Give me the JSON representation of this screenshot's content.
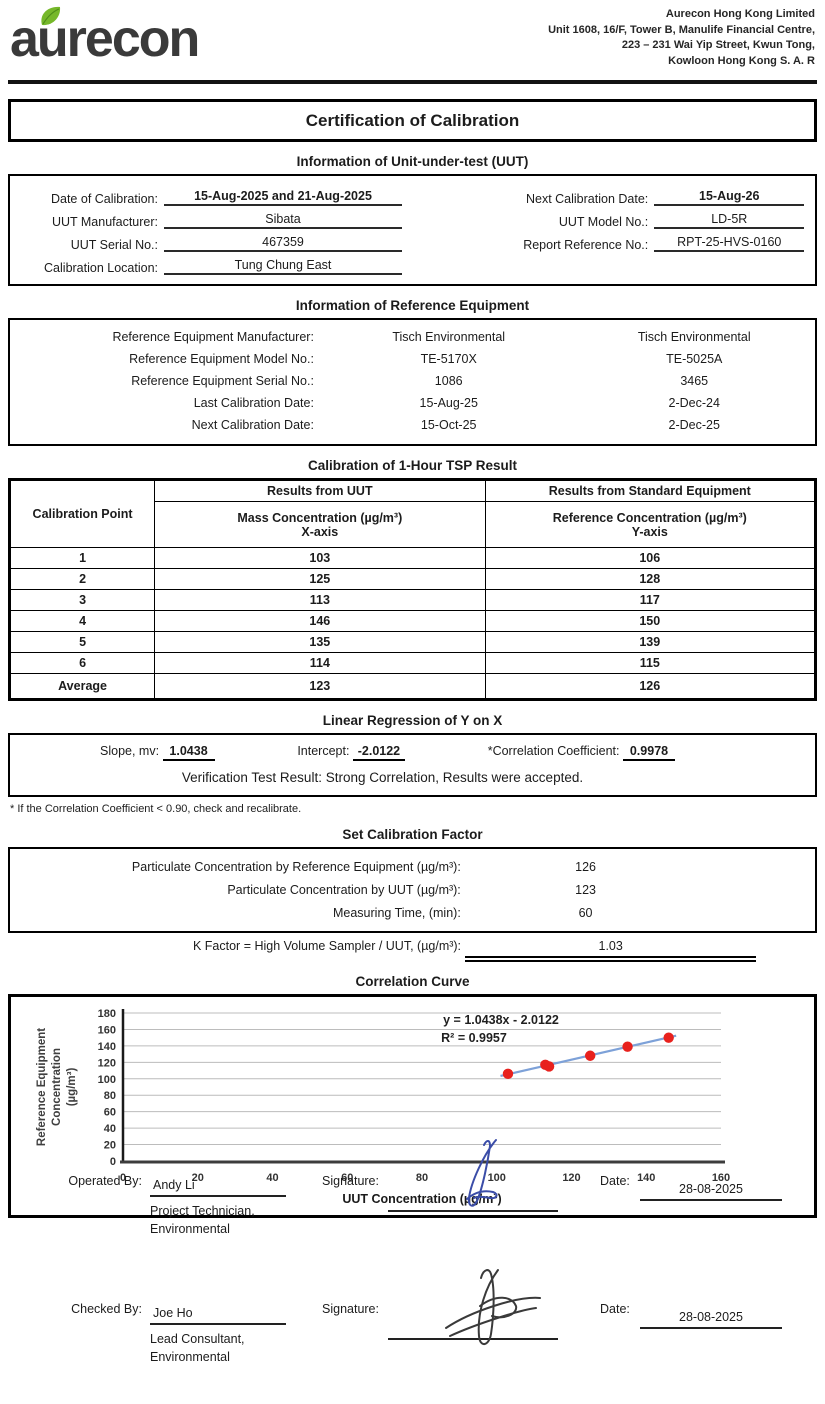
{
  "header": {
    "logo_text": "aurecon",
    "logo_color": "#3a3a3a",
    "leaf_color": "#76b82a",
    "address_lines": [
      "Aurecon Hong Kong Limited",
      "Unit 1608, 16/F, Tower B, Manulife Financial Centre,",
      "223 – 231 Wai Yip Street, Kwun Tong,",
      "Kowloon Hong Kong S. A. R"
    ]
  },
  "doc_title": "Certification of Calibration",
  "uut_info": {
    "section_title": "Information of Unit-under-test (UUT)",
    "left_fields": [
      {
        "label": "Date of Calibration:",
        "value": "15-Aug-2025 and 21-Aug-2025",
        "bold": true
      },
      {
        "label": "UUT Manufacturer:",
        "value": "Sibata",
        "bold": false
      },
      {
        "label": "UUT Serial No.:",
        "value": "467359",
        "bold": false
      },
      {
        "label": "Calibration Location:",
        "value": "Tung Chung East",
        "bold": false
      }
    ],
    "right_fields": [
      {
        "label": "Next Calibration Date:",
        "value": "15-Aug-26",
        "bold": true
      },
      {
        "label": "UUT Model No.:",
        "value": "LD-5R",
        "bold": false
      },
      {
        "label": "Report Reference No.:",
        "value": "RPT-25-HVS-0160",
        "bold": false
      }
    ]
  },
  "reference_info": {
    "section_title": "Information of Reference Equipment",
    "rows": [
      {
        "label": "Reference Equipment Manufacturer:",
        "col1": "Tisch Environmental",
        "col2": "Tisch Environmental"
      },
      {
        "label": "Reference Equipment Model No.:",
        "col1": "TE-5170X",
        "col2": "TE-5025A"
      },
      {
        "label": "Reference Equipment Serial No.:",
        "col1": "1086",
        "col2": "3465"
      },
      {
        "label": "Last Calibration Date:",
        "col1": "15-Aug-25",
        "col2": "2-Dec-24"
      },
      {
        "label": "Next Calibration Date:",
        "col1": "15-Oct-25",
        "col2": "2-Dec-25"
      }
    ]
  },
  "tsp_table": {
    "section_title": "Calibration of 1-Hour TSP Result",
    "corner_header": "Calibration Point",
    "uut_group_header": "Results from UUT",
    "uut_sub_header": "Mass Concentration (µg/m³)",
    "uut_axis_label": "X-axis",
    "std_group_header": "Results from Standard Equipment",
    "std_sub_header": "Reference Concentration (µg/m³)",
    "std_axis_label": "Y-axis",
    "rows": [
      {
        "point": "1",
        "uut": "103",
        "ref": "106"
      },
      {
        "point": "2",
        "uut": "125",
        "ref": "128"
      },
      {
        "point": "3",
        "uut": "113",
        "ref": "117"
      },
      {
        "point": "4",
        "uut": "146",
        "ref": "150"
      },
      {
        "point": "5",
        "uut": "135",
        "ref": "139"
      },
      {
        "point": "6",
        "uut": "114",
        "ref": "115"
      },
      {
        "point": "Average",
        "uut": "123",
        "ref": "126"
      }
    ]
  },
  "regression": {
    "section_title": "Linear Regression of Y on X",
    "slope_label": "Slope, mv:",
    "slope_value": "1.0438",
    "intercept_label": "Intercept:",
    "intercept_value": "-2.0122",
    "corr_label": "*Correlation Coefficient:",
    "corr_value": "0.9978",
    "verification_label": "Verification Test Result:",
    "verification_value": "Strong Correlation, Results were accepted.",
    "footnote": "* If the Correlation Coefficient < 0.90, check and recalibrate."
  },
  "calibration_factor": {
    "section_title": "Set Calibration Factor",
    "rows": [
      {
        "label": "Particulate Concentration by Reference Equipment (µg/m³):",
        "value": "126"
      },
      {
        "label": "Particulate Concentration  by UUT (µg/m³):",
        "value": "123"
      },
      {
        "label": "Measuring Time, (min):",
        "value": "60"
      }
    ],
    "k_factor_label": "K Factor = High Volume Sampler / UUT, (µg/m³):",
    "k_factor_value": "1.03"
  },
  "chart_section_title": "Correlation Curve",
  "chart_data": {
    "type": "scatter",
    "title": "Correlation Curve",
    "xlabel": "UUT Concentration (µg/m³)",
    "ylabel": "Reference Equipment Concentration (µg/m³)",
    "ylabel_lines": [
      "Reference Equipment",
      "Concentration",
      "(µg/m³)"
    ],
    "xlim": [
      0,
      160
    ],
    "ylim": [
      0,
      180
    ],
    "xtick_step": 20,
    "ytick_step": 20,
    "grid": true,
    "points": [
      [
        103,
        106
      ],
      [
        113,
        117
      ],
      [
        114,
        115
      ],
      [
        125,
        128
      ],
      [
        135,
        139
      ],
      [
        146,
        150
      ]
    ],
    "trendline": {
      "slope": 1.0438,
      "intercept": -2.0122,
      "x_start": 101,
      "x_end": 148
    },
    "equation_line1": "y = 1.0438x - 2.0122",
    "equation_line2": "R² = 0.9957",
    "point_color": "#e8211d",
    "line_color": "#7da1d8",
    "grid_color": "#bcbcbc"
  },
  "signatures": [
    {
      "role_label": "Operated By:",
      "name": "Andy Li",
      "title_line1": "Project Technician,",
      "title_line2": "Environmental",
      "signature_label": "Signature:",
      "date_label": "Date:",
      "date_value": "28-08-2025",
      "ink_color": "#3b4da8"
    },
    {
      "role_label": "Checked By:",
      "name": "Joe Ho",
      "title_line1": "Lead Consultant,",
      "title_line2": "Environmental",
      "signature_label": "Signature:",
      "date_label": "Date:",
      "date_value": "28-08-2025",
      "ink_color": "#3a3a3a"
    }
  ]
}
